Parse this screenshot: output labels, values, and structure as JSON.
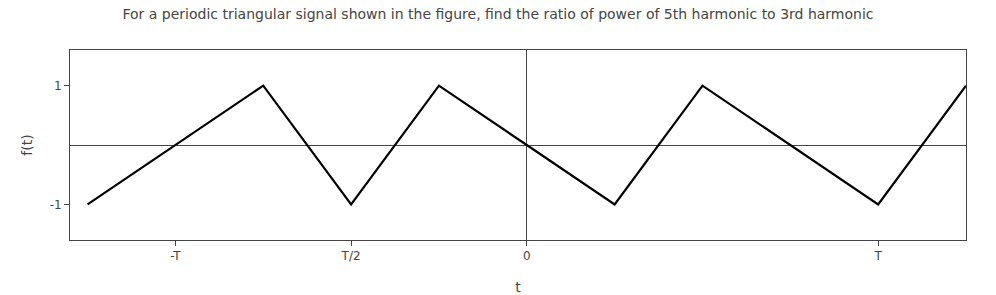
{
  "chart_data": {
    "type": "line",
    "title": "For a periodic triangular signal shown in the figure, find the ratio of power of 5th harmonic to 3rd harmonic",
    "xlabel": "t",
    "ylabel": "f(t)",
    "x": [
      -1.25,
      -1.0,
      -0.75,
      -0.5,
      -0.25,
      0.0,
      0.25,
      0.5,
      0.75,
      1.0,
      1.25
    ],
    "values": [
      -1.0,
      0.0,
      1.0,
      -1.0,
      1.0,
      0.0,
      -1.0,
      1.0,
      0.0,
      -1.0,
      1.0
    ],
    "color": "#000000",
    "xlim": [
      -1.3,
      1.25
    ],
    "xticks": [
      {
        "value": -1.0,
        "label": "-T"
      },
      {
        "value": -0.5,
        "label": "T/2"
      },
      {
        "value": 0,
        "label": "0"
      },
      {
        "value": 1.0,
        "label": "T"
      }
    ],
    "ylim": [
      -1.6,
      1.6
    ],
    "yticks": [
      -1,
      1
    ],
    "grid": false
  }
}
